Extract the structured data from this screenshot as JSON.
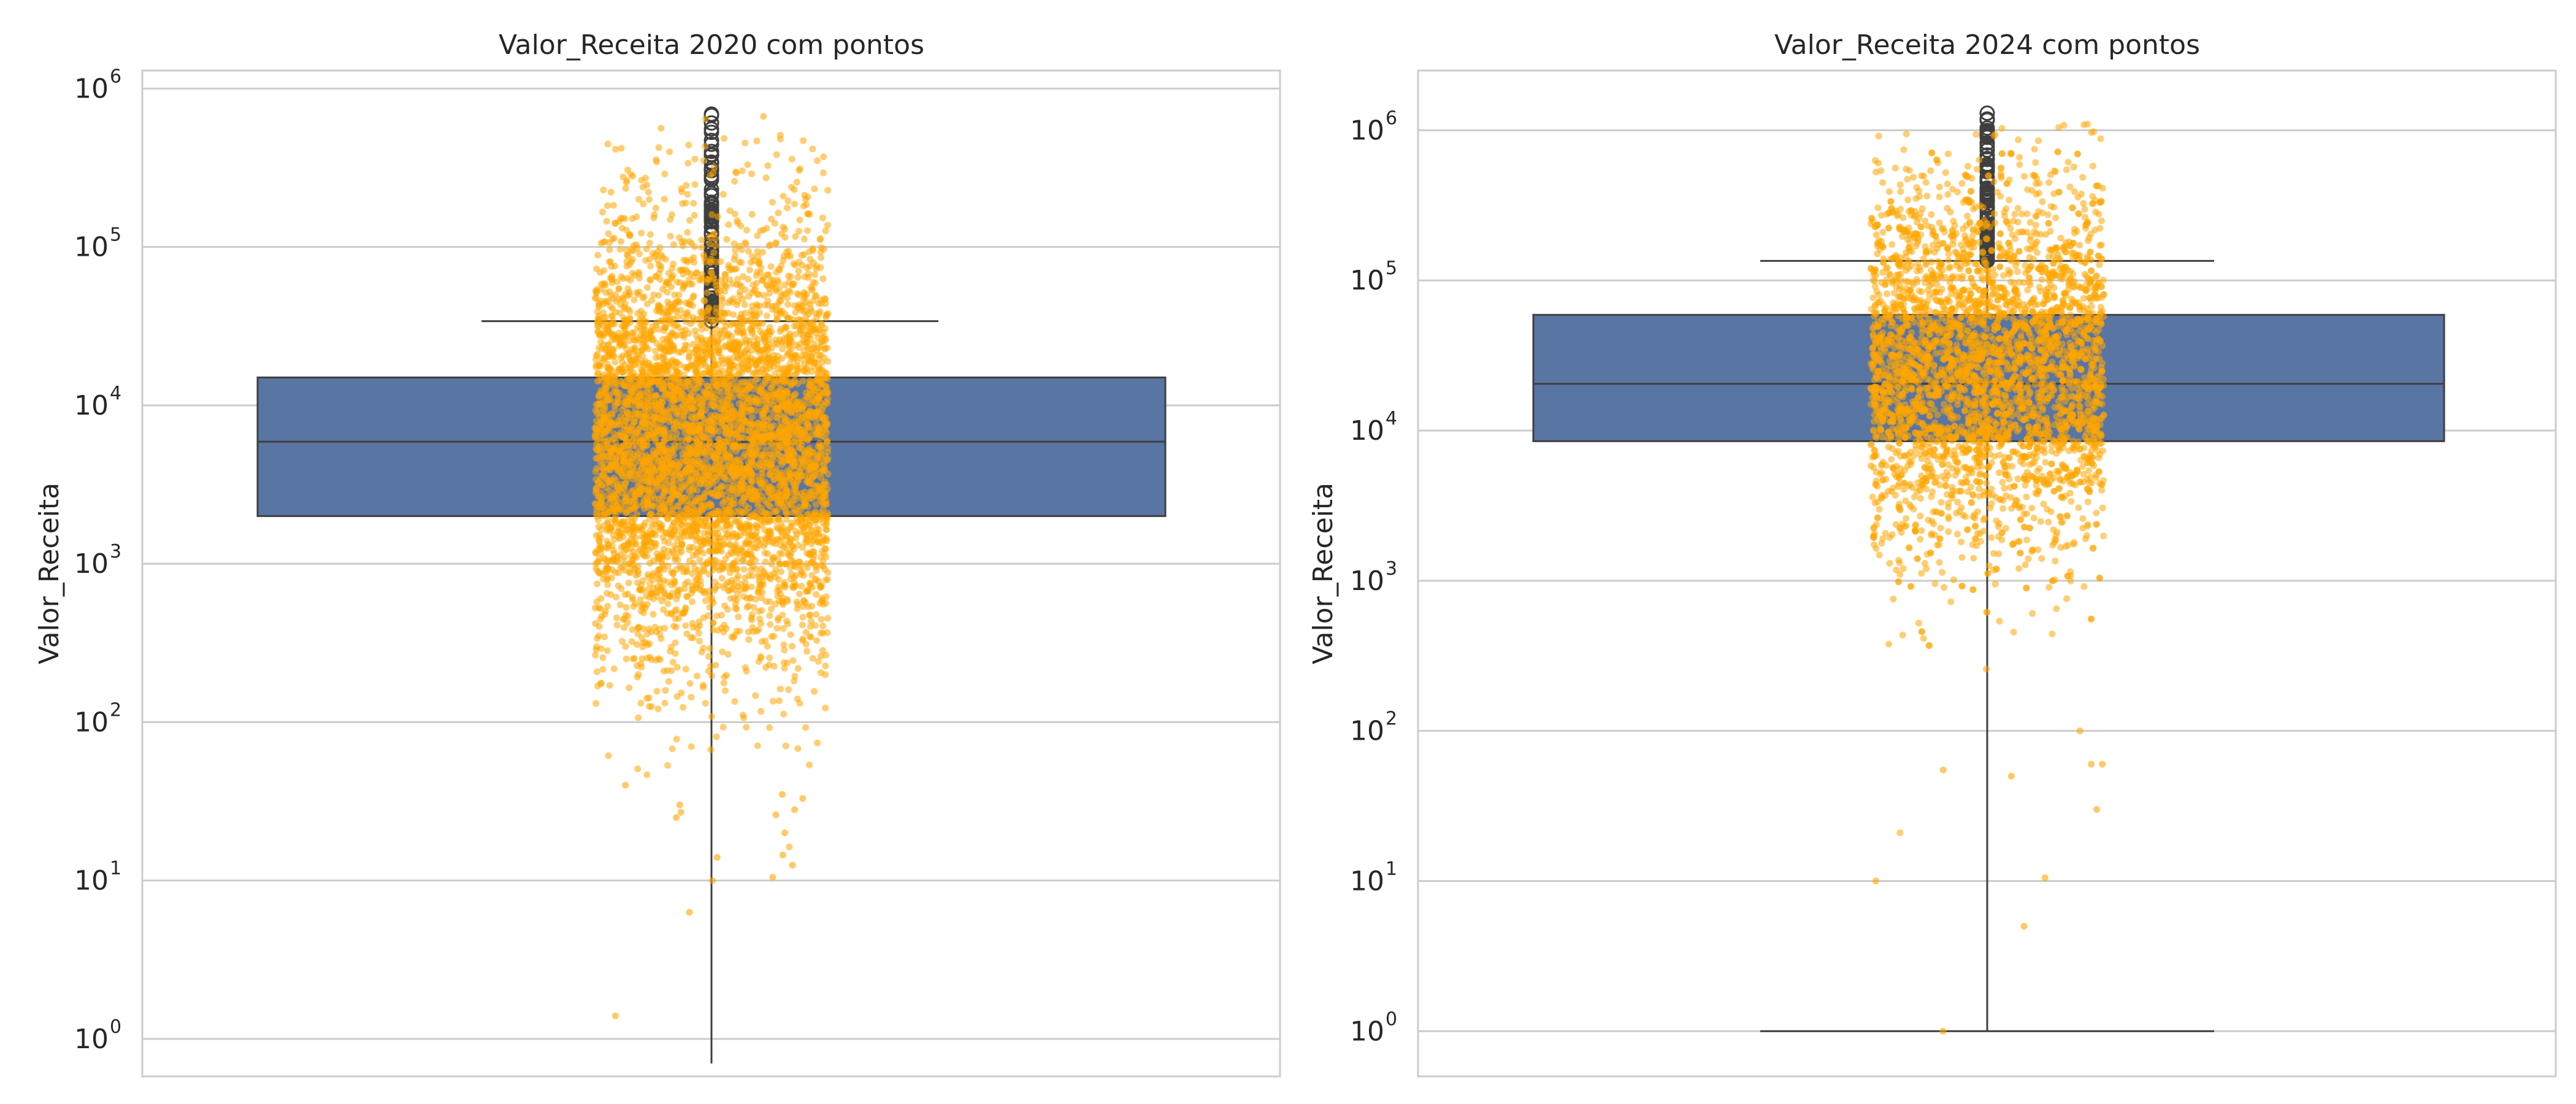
{
  "chart_data": [
    {
      "type": "box",
      "title": "Valor_Receita 2020 com pontos",
      "xlabel": "",
      "ylabel": "Valor_Receita",
      "yscale": "log",
      "ylim": [
        0.58,
        1300000.0
      ],
      "yticks": [
        {
          "base": "10",
          "exp": "0"
        },
        {
          "base": "10",
          "exp": "1"
        },
        {
          "base": "10",
          "exp": "2"
        },
        {
          "base": "10",
          "exp": "3"
        },
        {
          "base": "10",
          "exp": "4"
        },
        {
          "base": "10",
          "exp": "5"
        },
        {
          "base": "10",
          "exp": "6"
        }
      ],
      "grid": true,
      "box": {
        "whisker_low": 0.7,
        "q1": 2000,
        "median": 5900,
        "q3": 15000,
        "whisker_high": 34000,
        "outliers_from": 34000,
        "outliers_to": 690000
      },
      "points": {
        "count_approx": 12000,
        "min": 1.4,
        "max": 680000,
        "color": "#ffa500"
      },
      "box_color": "#5975a4"
    },
    {
      "type": "box",
      "title": "Valor_Receita 2024 com pontos",
      "xlabel": "",
      "ylabel": "Valor_Receita",
      "yscale": "log",
      "ylim": [
        0.5,
        2500000.0
      ],
      "yticks": [
        {
          "base": "10",
          "exp": "0"
        },
        {
          "base": "10",
          "exp": "1"
        },
        {
          "base": "10",
          "exp": "2"
        },
        {
          "base": "10",
          "exp": "3"
        },
        {
          "base": "10",
          "exp": "4"
        },
        {
          "base": "10",
          "exp": "5"
        },
        {
          "base": "10",
          "exp": "6"
        }
      ],
      "grid": true,
      "box": {
        "whisker_low": 1,
        "q1": 8500,
        "median": 20500,
        "q3": 59000,
        "whisker_high": 135000,
        "outliers_from": 135000,
        "outliers_to": 1300000
      },
      "points": {
        "count_approx": 4000,
        "min": 1,
        "max": 1100000,
        "color": "#ffa500"
      },
      "box_color": "#5975a4"
    }
  ]
}
